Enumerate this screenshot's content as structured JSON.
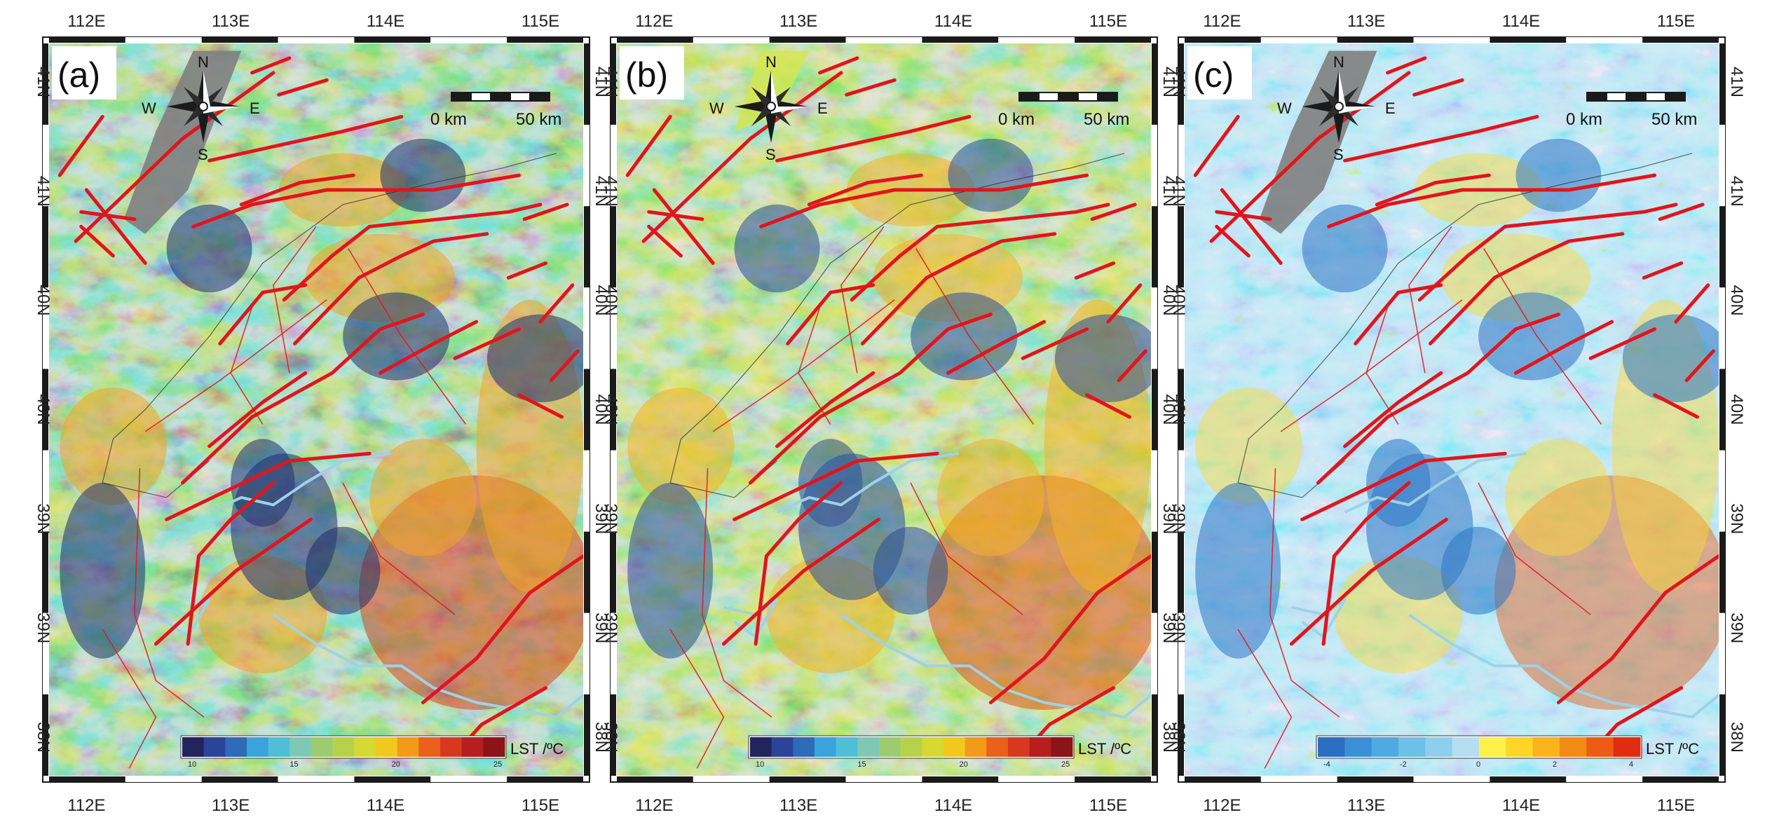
{
  "figure": {
    "x_ticks": [
      "112E",
      "113E",
      "114E",
      "115E"
    ],
    "y_ticks": [
      "41N",
      "41N",
      "40N",
      "40N",
      "39N",
      "39N",
      "38N"
    ],
    "compass": {
      "n": "N",
      "s": "S",
      "e": "E",
      "w": "W"
    },
    "scale": {
      "start": "0 km",
      "end": "50 km"
    },
    "colors": {
      "fault": "#e3141b",
      "river": "#9fd2e6",
      "nodata": "#7f7f7f",
      "frame_dark": "#1a1a1a"
    },
    "panels": [
      {
        "label": "(a)",
        "legend_title": "LST /ºC",
        "legend_ticks": [
          "10",
          "15",
          "20",
          "25"
        ],
        "palette": [
          "#22245e",
          "#2b4398",
          "#2e6bb8",
          "#3aa3dc",
          "#4fbfd8",
          "#7fc9b4",
          "#9dcc6e",
          "#b7d24a",
          "#d6d834",
          "#f2c81f",
          "#f39a1c",
          "#e8611d",
          "#d63a1e",
          "#b3201d",
          "#8b1418"
        ],
        "terrain": {
          "base": "#9ccc6a",
          "cold": "#1d2f72",
          "mid": "#3f9fd4",
          "warm": "#f0a524",
          "hot": "#d8471c"
        }
      },
      {
        "label": "(b)",
        "legend_title": "LST /ºC",
        "legend_ticks": [
          "10",
          "15",
          "20",
          "25"
        ],
        "palette": [
          "#22245e",
          "#2b4398",
          "#2e6bb8",
          "#3aa3dc",
          "#4fbfd8",
          "#7fc9b4",
          "#9dcc6e",
          "#b7d24a",
          "#d6d834",
          "#f2c81f",
          "#f39a1c",
          "#e8611d",
          "#d63a1e",
          "#b3201d",
          "#8b1418"
        ],
        "terrain": {
          "base": "#a8cf5a",
          "cold": "#2a4f98",
          "mid": "#5cb7c9",
          "warm": "#f2b422",
          "hot": "#e0561a"
        }
      },
      {
        "label": "(c)",
        "legend_title": "LST /ºC",
        "legend_ticks": [
          "-4",
          "-2",
          "0",
          "2",
          "4"
        ],
        "palette": [
          "#2a6fc2",
          "#3b8fd6",
          "#4fa9e2",
          "#6cc0ea",
          "#8ecfee",
          "#b4def2",
          "#fff14a",
          "#ffd52a",
          "#fbb21c",
          "#f48a16",
          "#ec5c13",
          "#e02d12"
        ],
        "terrain": {
          "base": "#9fd4ef",
          "cold": "#2d74c4",
          "mid": "#5fb2e3",
          "warm": "#ffd92e",
          "hot": "#e05a14"
        }
      }
    ]
  }
}
